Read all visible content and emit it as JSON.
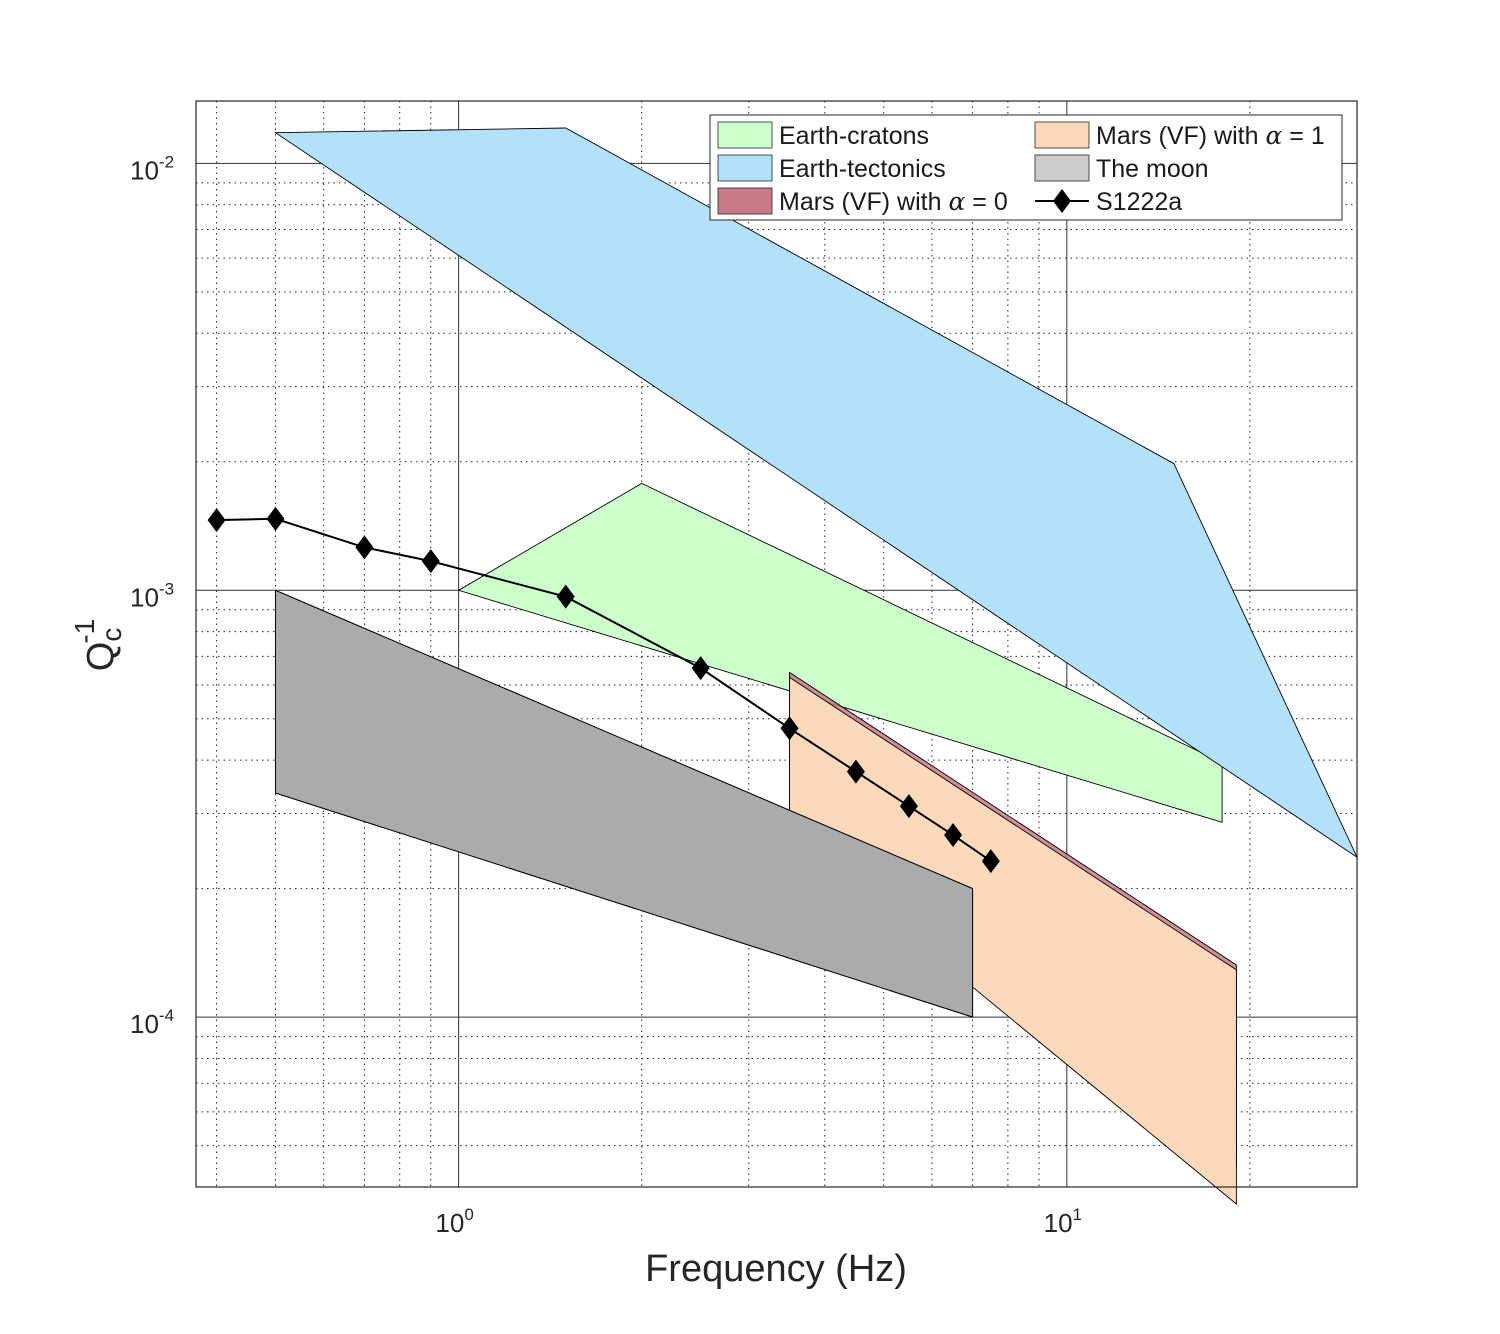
{
  "chart_data": {
    "type": "area",
    "xlabel": "Frequency (Hz)",
    "ylabel": {
      "base": "Q",
      "sub": "c",
      "sup": "-1"
    },
    "x_scale": "log",
    "y_scale": "log",
    "xlim": [
      0.37,
      30
    ],
    "ylim": [
      4e-05,
      0.014
    ],
    "x_ticks": [
      {
        "value": 1,
        "base": "10",
        "exp": "0"
      },
      {
        "value": 10,
        "base": "10",
        "exp": "1"
      }
    ],
    "y_ticks": [
      {
        "value": 0.01,
        "base": "10",
        "exp": "-2"
      },
      {
        "value": 0.001,
        "base": "10",
        "exp": "-3"
      },
      {
        "value": 0.0001,
        "base": "10",
        "exp": "-4"
      }
    ],
    "grid": {
      "major": true,
      "minor": true
    },
    "legend_placement": "top-right",
    "series": [
      {
        "name": "Earth-cratons",
        "kind": "region",
        "color": "#ccffcc",
        "polygon": [
          [
            1.0,
            0.001
          ],
          [
            2.0,
            0.00178
          ],
          [
            18.0,
            0.000395
          ],
          [
            18.0,
            0.000286
          ],
          [
            1.0,
            0.001
          ]
        ]
      },
      {
        "name": "Earth-tectonics",
        "kind": "region",
        "color": "#b3e0fb",
        "polygon": [
          [
            0.5,
            0.0118
          ],
          [
            1.5,
            0.0121
          ],
          [
            15.0,
            0.00198
          ],
          [
            30.0,
            0.000237
          ],
          [
            0.5,
            0.0118
          ]
        ]
      },
      {
        "name": "Mars (VF) with α = 0",
        "label_prefix": "Mars (VF) with ",
        "label_greek": "α",
        "label_suffix": " = 0",
        "kind": "region",
        "color": "#c87a88",
        "polygon": [
          [
            3.5,
            0.000642
          ],
          [
            19.0,
            0.0001325
          ],
          [
            19.0,
            4.48e-05
          ],
          [
            3.5,
            0.000265
          ]
        ]
      },
      {
        "name": "Mars (VF) with α = 1",
        "label_prefix": "Mars (VF) with ",
        "label_greek": "α",
        "label_suffix": " = 1",
        "kind": "region",
        "color": "#fdd9bc",
        "polygon": [
          [
            3.5,
            0.000625
          ],
          [
            19.0,
            0.000129
          ],
          [
            19.0,
            3.65e-05
          ],
          [
            3.5,
            0.000265
          ]
        ]
      },
      {
        "name": "The moon",
        "kind": "region",
        "color": "#cccccc",
        "polygon": [
          [
            0.5,
            0.001
          ],
          [
            7.0,
            0.0002
          ],
          [
            7.0,
            0.0001
          ],
          [
            0.5,
            0.000335
          ]
        ]
      },
      {
        "name": "S1222a",
        "kind": "line",
        "color": "#000000",
        "marker": "diamond",
        "x": [
          0.4,
          0.5,
          0.7,
          0.9,
          1.5,
          2.5,
          3.5,
          4.5,
          5.5,
          6.5,
          7.5
        ],
        "y": [
          0.00146,
          0.00147,
          0.00126,
          0.00117,
          0.000966,
          0.000657,
          0.000475,
          0.000376,
          0.000312,
          0.000267,
          0.000232
        ]
      }
    ]
  }
}
